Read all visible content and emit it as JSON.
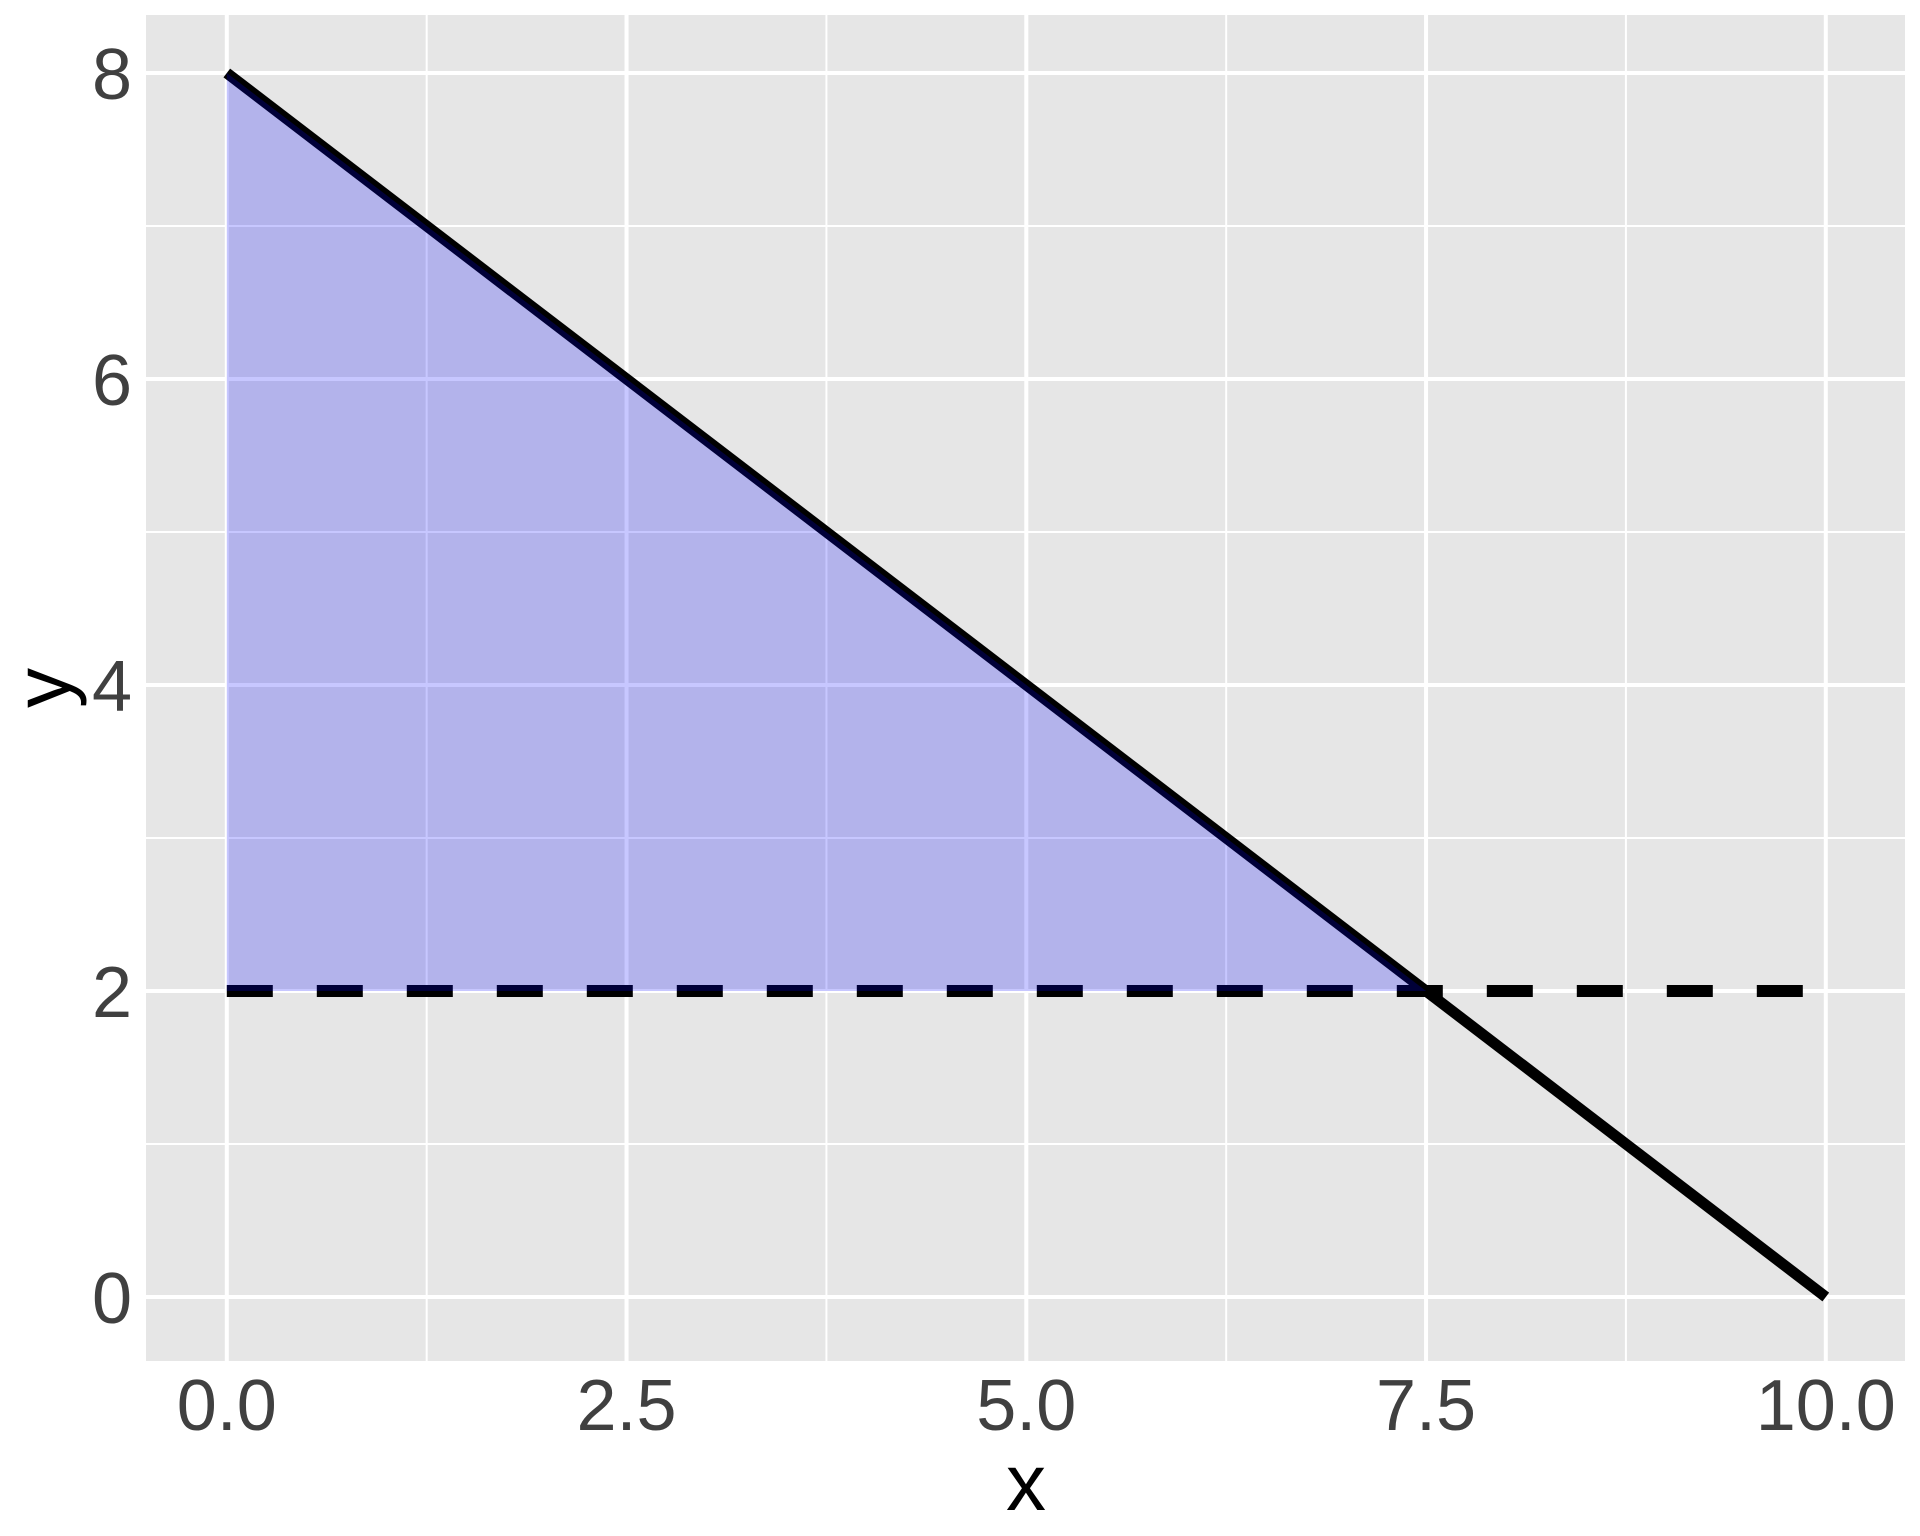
{
  "chart_data": {
    "type": "line",
    "title": "",
    "xlabel": "x",
    "ylabel": "y",
    "xlim": [
      0,
      10
    ],
    "ylim": [
      0,
      8
    ],
    "x_tick_values": [
      0,
      2.5,
      5,
      7.5,
      10
    ],
    "x_tick_labels": [
      "0.0",
      "2.5",
      "5.0",
      "7.5",
      "10.0"
    ],
    "y_tick_values": [
      0,
      2,
      4,
      6,
      8
    ],
    "y_tick_labels": [
      "0",
      "2",
      "4",
      "6",
      "8"
    ],
    "grid": "major and minor gridlines, white on grey panel",
    "legend_position": "none",
    "series": [
      {
        "name": "solid-boundary-line",
        "equation": "y = 8 - 0.8x",
        "style": "solid",
        "color": "#000000",
        "points": [
          [
            0,
            8
          ],
          [
            10,
            0
          ]
        ]
      },
      {
        "name": "dashed-horizontal-line",
        "equation": "y = 2",
        "style": "dashed",
        "color": "#000000",
        "points": [
          [
            0,
            2
          ],
          [
            10,
            2
          ]
        ]
      }
    ],
    "shaded_region": {
      "name": "feasible-region",
      "vertices": [
        [
          0,
          8
        ],
        [
          7.5,
          2
        ],
        [
          0,
          2
        ]
      ],
      "fill_rgba": "rgba(0,0,255,0.22)",
      "apparent_color_over_panel": "#b5b5e9"
    },
    "colors": {
      "panel_background": "#e6e6e6",
      "gridline": "#ffffff",
      "tick_label": "#404040",
      "axis_title": "#000000",
      "outer_background": "#ffffff",
      "line": "#000000"
    }
  }
}
